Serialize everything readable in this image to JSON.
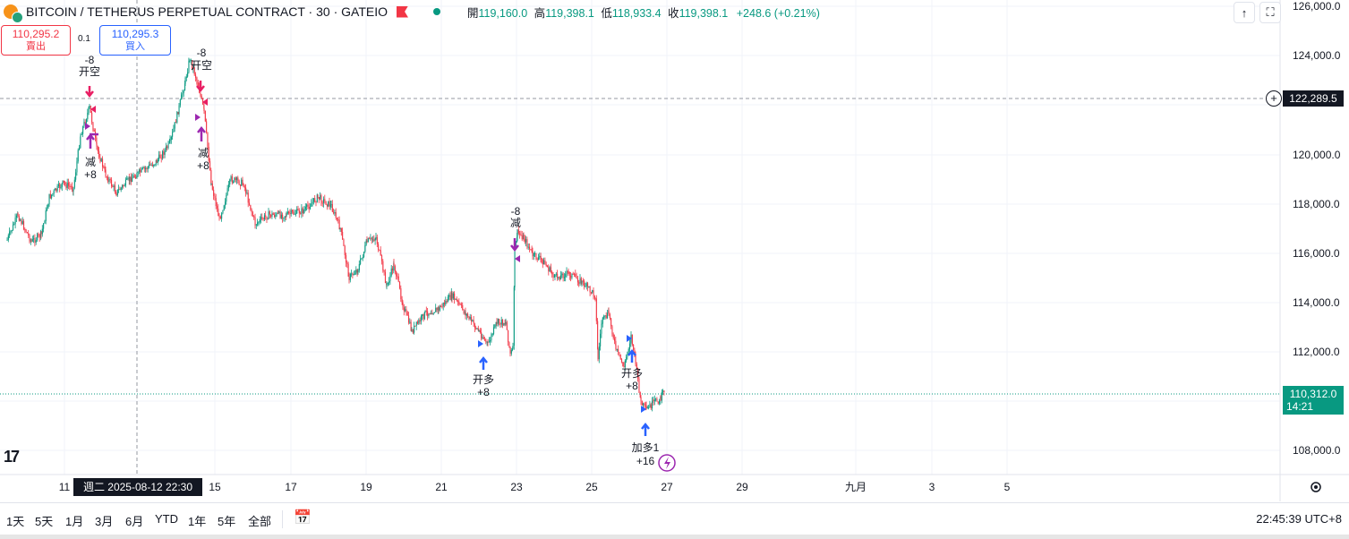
{
  "header": {
    "symbol_title": "BITCOIN / TETHERUS PERPETUAL CONTRACT · 30 · GATEIO",
    "ohlc": {
      "open_label": "開",
      "open": "119,160.0",
      "high_label": "高",
      "high": "119,398.1",
      "low_label": "低",
      "low": "118,933.4",
      "close_label": "收",
      "close": "119,398.1",
      "change": "+248.6 (+0.21%)"
    }
  },
  "trade": {
    "sell_price": "110,295.2",
    "sell_label": "賣出",
    "spread": "0.1",
    "buy_price": "110,295.3",
    "buy_label": "買入"
  },
  "price_axis": {
    "ticks": [
      "126,000.0",
      "124,000.0",
      "122,000.0",
      "120,000.0",
      "118,000.0",
      "116,000.0",
      "114,000.0",
      "112,000.0",
      "108,000.0"
    ],
    "crosshair_price": "122,289.5",
    "current_price": "110,312.0",
    "countdown": "14:21"
  },
  "time_axis": {
    "ticks": [
      "11",
      "15",
      "17",
      "19",
      "21",
      "23",
      "25",
      "27",
      "29",
      "九月",
      "3",
      "5"
    ],
    "crosshair_time": "週二  2025-08-12   22:30"
  },
  "annotations": [
    {
      "top": "-8",
      "bottom": "开空"
    },
    {
      "top": "-8",
      "bottom": "开空"
    },
    {
      "top": "减",
      "bottom": "+8"
    },
    {
      "top": "减",
      "bottom": "+8"
    },
    {
      "top": "-8",
      "bottom": "减"
    },
    {
      "top": "开多",
      "bottom": "+8"
    },
    {
      "top": "开多",
      "bottom": "+8"
    },
    {
      "top": "加多1",
      "bottom": "+16"
    }
  ],
  "bottom_toolbar": {
    "ranges": [
      "1天",
      "5天",
      "1月",
      "3月",
      "6月",
      "YTD",
      "1年",
      "5年",
      "全部"
    ],
    "clock": "22:45:39 UTC+8"
  },
  "colors": {
    "up": "#089981",
    "down": "#f23645",
    "buy": "#2962ff",
    "sell": "#f23645",
    "short_arrow": "#e91e63",
    "reduce_arrow": "#9c27b0",
    "long_arrow": "#2962ff"
  },
  "icons": [
    "bitcoin-icon",
    "tether-icon",
    "flag-icon",
    "market-status-dot",
    "scroll-up-icon",
    "fullscreen-icon",
    "crosshair-plus-icon",
    "tradingview-logo",
    "lightning-icon",
    "settings-icon",
    "date-range-icon"
  ],
  "chart_data": {
    "type": "candlestick",
    "ylim": [
      107000,
      126400
    ],
    "path_points": [
      [
        8,
        268
      ],
      [
        20,
        240
      ],
      [
        35,
        270
      ],
      [
        46,
        262
      ],
      [
        55,
        220
      ],
      [
        70,
        205
      ],
      [
        82,
        210
      ],
      [
        90,
        150
      ],
      [
        100,
        120
      ],
      [
        108,
        165
      ],
      [
        118,
        195
      ],
      [
        130,
        215
      ],
      [
        145,
        200
      ],
      [
        160,
        190
      ],
      [
        175,
        180
      ],
      [
        190,
        160
      ],
      [
        200,
        120
      ],
      [
        207,
        90
      ],
      [
        212,
        65
      ],
      [
        220,
        90
      ],
      [
        228,
        125
      ],
      [
        236,
        205
      ],
      [
        245,
        245
      ],
      [
        258,
        200
      ],
      [
        272,
        205
      ],
      [
        285,
        250
      ],
      [
        300,
        240
      ],
      [
        320,
        240
      ],
      [
        340,
        235
      ],
      [
        355,
        220
      ],
      [
        370,
        230
      ],
      [
        380,
        255
      ],
      [
        390,
        310
      ],
      [
        400,
        300
      ],
      [
        410,
        270
      ],
      [
        420,
        265
      ],
      [
        432,
        320
      ],
      [
        440,
        295
      ],
      [
        450,
        340
      ],
      [
        460,
        370
      ],
      [
        475,
        350
      ],
      [
        490,
        345
      ],
      [
        505,
        330
      ],
      [
        520,
        350
      ],
      [
        535,
        370
      ],
      [
        545,
        385
      ],
      [
        555,
        360
      ],
      [
        565,
        360
      ],
      [
        570,
        395
      ],
      [
        573,
        390
      ],
      [
        575,
        280
      ],
      [
        578,
        260
      ],
      [
        585,
        265
      ],
      [
        595,
        285
      ],
      [
        605,
        290
      ],
      [
        620,
        310
      ],
      [
        635,
        305
      ],
      [
        650,
        315
      ],
      [
        665,
        330
      ],
      [
        668,
        400
      ],
      [
        672,
        360
      ],
      [
        680,
        350
      ],
      [
        688,
        390
      ],
      [
        697,
        410
      ],
      [
        705,
        375
      ],
      [
        710,
        405
      ],
      [
        716,
        450
      ],
      [
        722,
        458
      ],
      [
        730,
        450
      ],
      [
        738,
        445
      ],
      [
        742,
        435
      ]
    ]
  }
}
